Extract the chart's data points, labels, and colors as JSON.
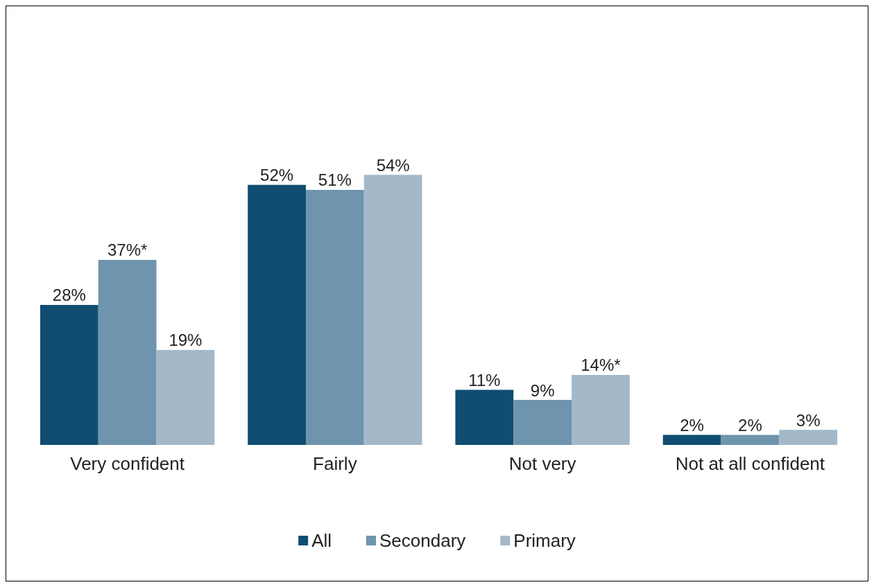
{
  "chart_data": {
    "type": "bar",
    "categories": [
      "Very confident",
      "Fairly",
      "Not very",
      "Not at all confident"
    ],
    "series": [
      {
        "name": "All",
        "color": "#114d72",
        "values": [
          28,
          52,
          11,
          2
        ],
        "value_labels": [
          "28%",
          "52%",
          "11%",
          "2%"
        ]
      },
      {
        "name": "Secondary",
        "color": "#6f94ad",
        "values": [
          37,
          51,
          9,
          2
        ],
        "value_labels": [
          "37%*",
          "51%",
          "9%",
          "2%"
        ]
      },
      {
        "name": "Primary",
        "color": "#a3b9c9",
        "values": [
          19,
          54,
          14,
          3
        ],
        "value_labels": [
          "19%",
          "54%",
          "14%*",
          "3%"
        ]
      }
    ],
    "legend": "bottom",
    "grid": false
  }
}
